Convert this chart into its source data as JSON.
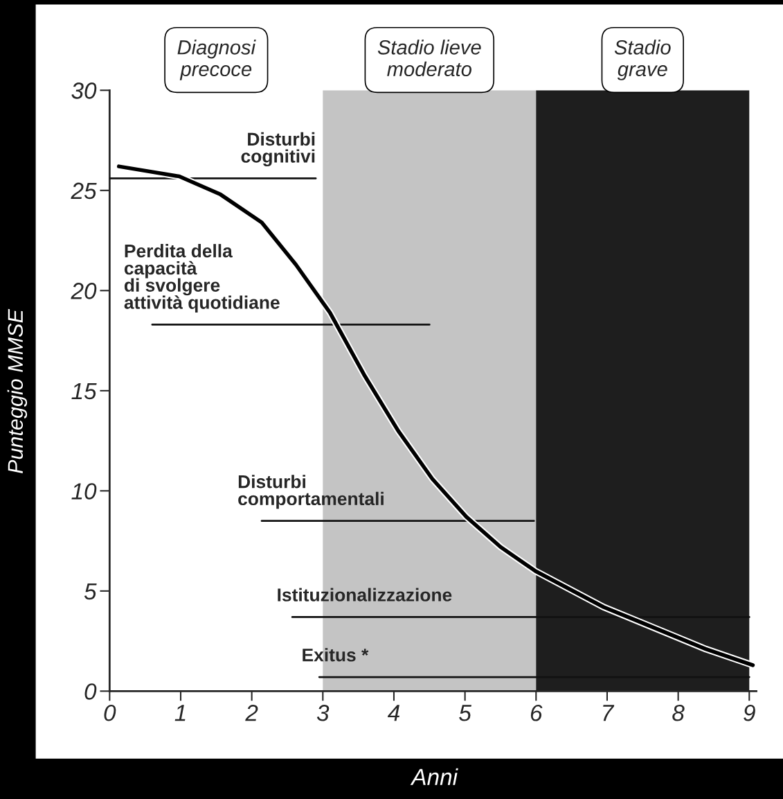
{
  "chart_data": {
    "type": "line",
    "xlabel": "Anni",
    "ylabel": "Punteggio MMSE",
    "xlim": [
      0,
      9.1
    ],
    "ylim": [
      0,
      30
    ],
    "xticks": [
      0,
      1,
      2,
      3,
      4,
      5,
      6,
      7,
      8,
      9
    ],
    "yticks": [
      0,
      5,
      10,
      15,
      20,
      25,
      30
    ],
    "grid": false,
    "legend": false,
    "series": [
      {
        "color": "#000000",
        "x": [
          0.13,
          0.98,
          1.56,
          2.14,
          2.62,
          3.1,
          3.58,
          4.06,
          4.54,
          5.02,
          5.5,
          5.99,
          6.47,
          6.95,
          7.43,
          7.91,
          8.39,
          9.05
        ],
        "values": [
          26.2,
          25.7,
          24.8,
          23.4,
          21.3,
          18.9,
          15.8,
          13.0,
          10.6,
          8.7,
          7.2,
          6.0,
          5.1,
          4.2,
          3.5,
          2.8,
          2.1,
          1.3
        ]
      },
      {
        "name": "Disturbi\ncognitivi",
        "color": "#111111",
        "x": [
          0,
          2.9
        ],
        "values": [
          25.6,
          25.6
        ]
      },
      {
        "name": "Perdita della\ncapacità\ndi svolgere\nattività quotidiane",
        "color": "#111111",
        "x": [
          0.6,
          4.5
        ],
        "values": [
          18.3,
          18.3
        ]
      },
      {
        "name": "Disturbi\ncomportamentali",
        "color": "#111111",
        "x": [
          2.14,
          5.97
        ],
        "values": [
          8.5,
          8.5
        ]
      },
      {
        "name": "Istituzionalizzazione",
        "color": "#111111",
        "x": [
          2.57,
          9.0
        ],
        "values": [
          3.7,
          3.7
        ]
      },
      {
        "name": "Exitus *",
        "color": "#111111",
        "x": [
          2.95,
          9.0
        ],
        "values": [
          0.7,
          0.7
        ]
      }
    ],
    "annotations": [
      "Diagnosi\nprecoce"
    ],
    "bands": [
      {
        "axis": "x",
        "from": 3,
        "to": 6,
        "label": "Stadio lieve\nmoderato",
        "color": "#c4c4c4"
      },
      {
        "axis": "x",
        "from": 6,
        "to": 9,
        "label": "Stadio\ngrave",
        "color": "#1e1e1e"
      }
    ]
  }
}
